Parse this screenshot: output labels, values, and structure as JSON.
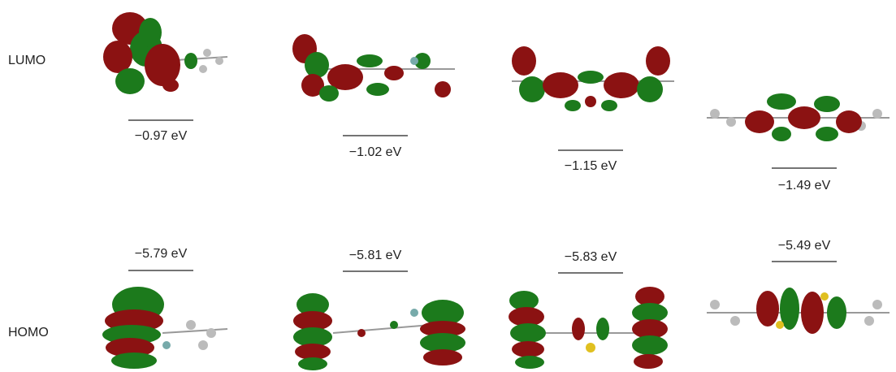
{
  "rows": [
    {
      "label": "LUMO",
      "energies": [
        "−0.97 eV",
        "−1.02 eV",
        "−1.15 eV",
        "−1.49 eV"
      ]
    },
    {
      "label": "HOMO",
      "energies": [
        "−5.79 eV",
        "−5.81 eV",
        "−5.83 eV",
        "−5.49 eV"
      ]
    }
  ]
}
